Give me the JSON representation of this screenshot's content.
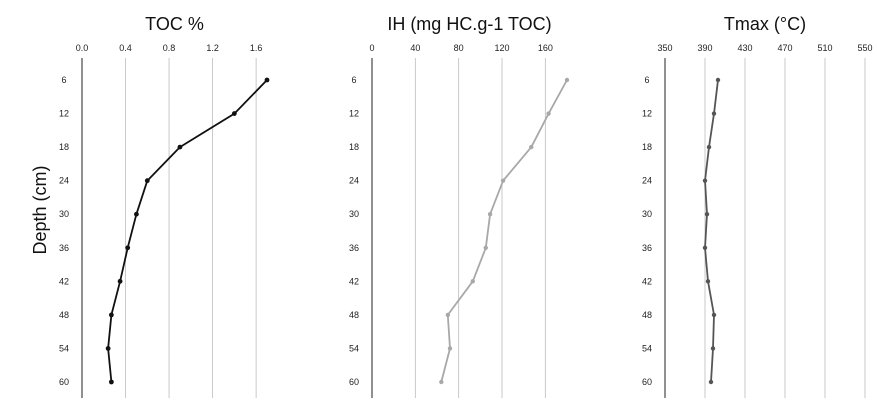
{
  "figure": {
    "ylabel": "Depth (cm)"
  },
  "chart_data": [
    {
      "type": "line",
      "title": "TOC %",
      "xlim": [
        0,
        1.7
      ],
      "xticks": [
        "0.0",
        "0.4",
        "0.8",
        "1.2",
        "1.6"
      ],
      "ylim": [
        6,
        60
      ],
      "yticks": [
        "6",
        "12",
        "18",
        "24",
        "30",
        "36",
        "42",
        "48",
        "54",
        "60"
      ],
      "grid": "vertical",
      "series": [
        {
          "x": [
            1.7,
            1.4,
            0.9,
            0.6,
            0.5,
            0.42,
            0.35,
            0.27,
            0.24,
            0.27
          ],
          "y": [
            6,
            12,
            18,
            24,
            30,
            36,
            42,
            48,
            54,
            60
          ],
          "color": "#111111"
        }
      ]
    },
    {
      "type": "line",
      "title": "IH (mg HC.g-1 TOC)",
      "xlim": [
        0,
        180
      ],
      "xticks": [
        "0",
        "40",
        "80",
        "120",
        "160"
      ],
      "ylim": [
        6,
        60
      ],
      "yticks": [
        "6",
        "12",
        "18",
        "24",
        "30",
        "36",
        "42",
        "48",
        "54",
        "60"
      ],
      "grid": "vertical",
      "series": [
        {
          "x": [
            180,
            163,
            147,
            121,
            109,
            105,
            93,
            70,
            72,
            64
          ],
          "y": [
            6,
            12,
            18,
            24,
            30,
            36,
            42,
            48,
            54,
            60
          ],
          "color": "#a8a8a8"
        }
      ]
    },
    {
      "type": "line",
      "title": "Tmax (°C)",
      "xlim": [
        350,
        550
      ],
      "xticks": [
        "350",
        "390",
        "430",
        "470",
        "510",
        "550"
      ],
      "ylim": [
        6,
        60
      ],
      "yticks": [
        "6",
        "12",
        "18",
        "24",
        "30",
        "36",
        "42",
        "48",
        "54",
        "60"
      ],
      "grid": "vertical",
      "series": [
        {
          "x": [
            403,
            399,
            394,
            390,
            392,
            390,
            393,
            399,
            398,
            396
          ],
          "y": [
            6,
            12,
            18,
            24,
            30,
            36,
            42,
            48,
            54,
            60
          ],
          "color": "#555555"
        }
      ]
    }
  ]
}
